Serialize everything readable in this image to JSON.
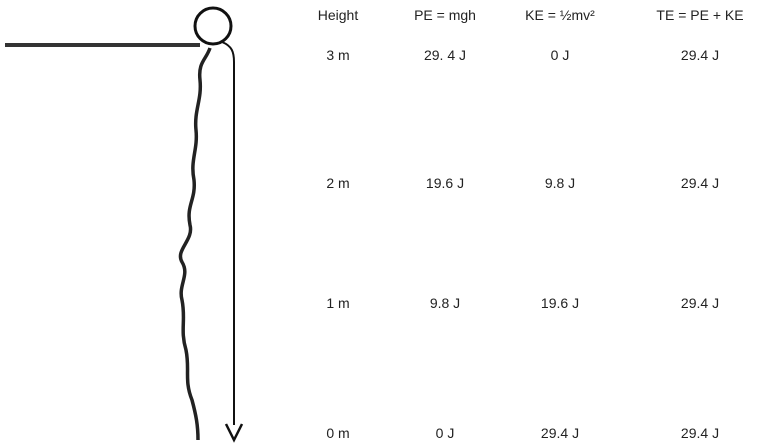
{
  "table": {
    "header": [
      "Height",
      "PE = mgh",
      "KE = ½mv²",
      "TE = PE + KE"
    ],
    "rows": [
      [
        "3 m",
        "29. 4 J",
        "0 J",
        "29.4 J"
      ],
      [
        "2 m",
        "19.6 J",
        "9.8 J",
        "29.4 J"
      ],
      [
        "1 m",
        "9.8 J",
        "19.6 J",
        "29.4 J"
      ],
      [
        "0 m",
        "0 J",
        "29.4 J",
        "29.4 J"
      ]
    ]
  }
}
